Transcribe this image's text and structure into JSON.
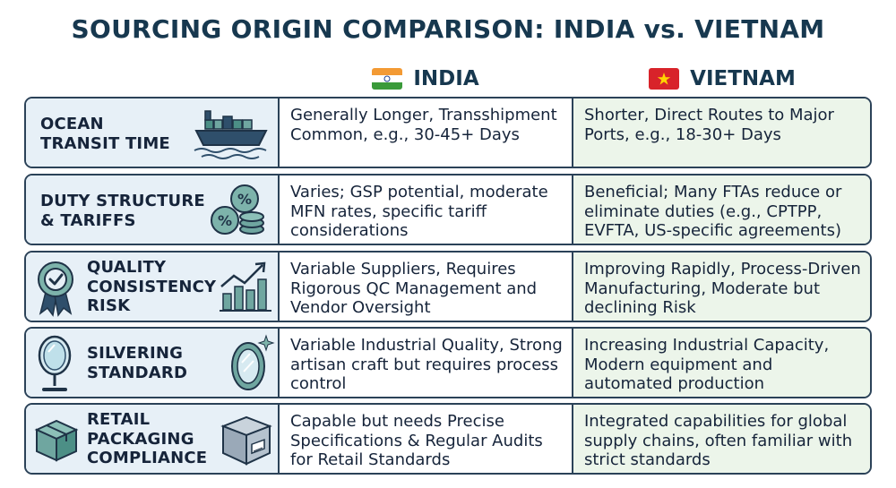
{
  "title": "SOURCING ORIGIN COMPARISON: INDIA vs. VIETNAM",
  "columns": {
    "india": {
      "label": "INDIA",
      "flag_icon": "india-flag-icon"
    },
    "vietnam": {
      "label": "VIETNAM",
      "flag_icon": "vietnam-flag-icon"
    }
  },
  "rows": [
    {
      "label_lines": [
        "OCEAN",
        "TRANSIT TIME"
      ],
      "icon": "cargo-ship-icon",
      "india": "Generally Longer, Transshipment Common, e.g., 30-45+ Days",
      "vietnam": "Shorter, Direct Routes to Major Ports, e.g., 18-30+ Days"
    },
    {
      "label_lines": [
        "DUTY STRUCTURE",
        "& TARIFFS"
      ],
      "icon": "percent-coins-icon",
      "india": "Varies; GSP potential, moderate MFN rates, specific tariff considerations",
      "vietnam": "Beneficial; Many FTAs reduce or eliminate duties (e.g., CPTPP, EVFTA, US-specific agreements)"
    },
    {
      "label_lines": [
        "QUALITY",
        "CONSISTENCY",
        "RISK"
      ],
      "icon": "quality-badge-chart-icon",
      "india": "Variable Suppliers, Requires Rigorous QC Management and Vendor Oversight",
      "vietnam": "Improving Rapidly, Process-Driven Manufacturing, Moderate but declining Risk"
    },
    {
      "label_lines": [
        "SILVERING",
        "STANDARD"
      ],
      "icon": "mirror-icon",
      "india": "Variable Industrial Quality, Strong artisan craft but requires process control",
      "vietnam": "Increasing Industrial Capacity, Modern equipment and automated production"
    },
    {
      "label_lines": [
        "RETAIL",
        "PACKAGING",
        "COMPLIANCE"
      ],
      "icon": "package-box-icon",
      "india": "Capable but needs Precise Specifications & Regular Audits for Retail Standards",
      "vietnam": "Integrated capabilities for global supply chains, often familiar with strict standards"
    }
  ],
  "colors": {
    "title": "#17384f",
    "border": "#2b4258",
    "label_bg": "#e7f0f7",
    "vietnam_bg": "#ecf5ea",
    "icon_teal": "#4c8f86",
    "icon_navy": "#2f4f6b"
  }
}
